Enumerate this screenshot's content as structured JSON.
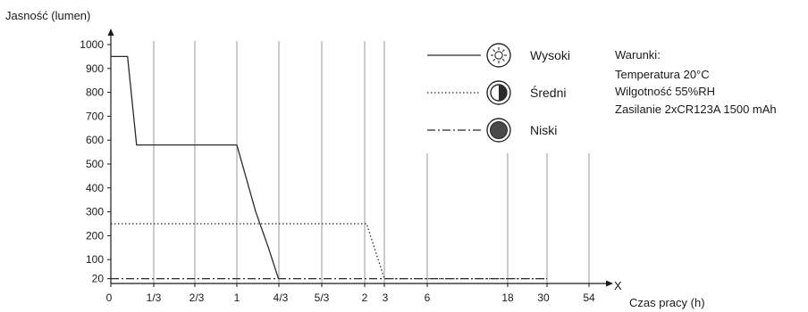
{
  "chart_data": {
    "type": "line",
    "ylabel": "Jasność (lumen)",
    "xlabel": "Czas pracy (h)",
    "x_axis_letter": "X",
    "x_tick_labels": [
      "0",
      "1/3",
      "2/3",
      "1",
      "4/3",
      "5/3",
      "2",
      "3",
      "6",
      "18",
      "30",
      "54"
    ],
    "y_ticks": [
      20,
      100,
      200,
      300,
      400,
      500,
      600,
      700,
      800,
      900,
      1000
    ],
    "ylim": [
      0,
      1050
    ],
    "grid": "vertical",
    "legend_position": "top-right",
    "series": [
      {
        "name": "Wysoki",
        "icon": "sun-icon",
        "style": "solid",
        "points": [
          [
            0,
            950
          ],
          [
            0.13,
            950
          ],
          [
            0.2,
            580
          ],
          [
            1,
            580
          ],
          [
            1.15,
            300
          ],
          [
            1.25,
            150
          ],
          [
            1.33,
            20
          ]
        ]
      },
      {
        "name": "Średni",
        "icon": "half-circle-icon",
        "style": "dotted",
        "points": [
          [
            0,
            250
          ],
          [
            2.1,
            250
          ],
          [
            3,
            20
          ],
          [
            30,
            20
          ]
        ]
      },
      {
        "name": "Niski",
        "icon": "filled-circle-icon",
        "style": "dashdot",
        "points": [
          [
            0,
            20
          ],
          [
            30,
            20
          ]
        ]
      }
    ],
    "conditions": {
      "title": "Warunki:",
      "lines": [
        "Temperatura 20°C",
        "Wilgotność 55%RH",
        "Zasilanie 2xCR123A 1500 mAh"
      ]
    }
  }
}
